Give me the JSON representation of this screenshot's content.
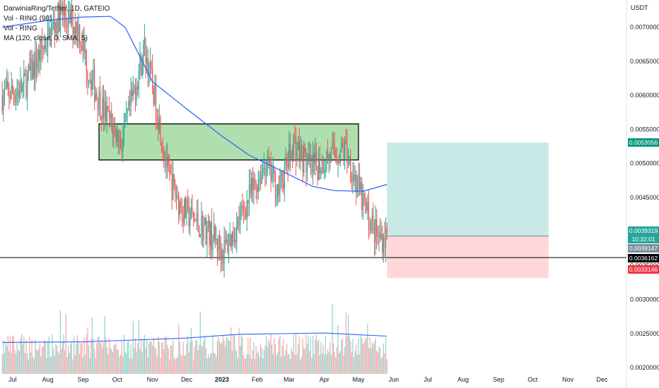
{
  "header": {
    "title": "DarwiniaRing/Tether, 1D, GATEIO",
    "indicators": [
      "Vol - RING (90)",
      "Vol - RING",
      "MA (120, close, 0, SMA, 5)"
    ]
  },
  "axis": {
    "currency": "USDT",
    "price_ticks": [
      "0.0070000",
      "0.0065000",
      "0.0060000",
      "0.0055000",
      "0.0050000",
      "0.0045000",
      "0.0040000",
      "0.0035000",
      "0.0030000",
      "0.0025000",
      "0.0020000"
    ],
    "time_ticks": [
      "Jul",
      "Aug",
      "Sep",
      "Oct",
      "Nov",
      "Dec",
      "2023",
      "Feb",
      "Mar",
      "Apr",
      "May",
      "Jun",
      "Jul",
      "Aug",
      "Sep",
      "Oct",
      "Nov",
      "Dec"
    ]
  },
  "price_labels": {
    "target": "0.0053056",
    "last": "0.0039319",
    "countdown": "10:32:01",
    "level_a": "0.0039147",
    "level_b": "0.0036162",
    "stop": "0.0033146"
  },
  "colors": {
    "up": "#26a69a",
    "down": "#ef5350",
    "ma": "#2962ff",
    "zone": "#6dc46d",
    "target_fill": "#b2dfdb",
    "stop_fill": "#ffcdd2",
    "target_tag": "#089981",
    "last_tag": "#26a69a",
    "level_tag": "#78909c",
    "black_tag": "#000000",
    "stop_tag": "#f23645"
  },
  "chart_data": {
    "type": "candlestick",
    "interval": "1D",
    "ylim": [
      0.0017,
      0.0074
    ],
    "x_range": [
      "2022-06-20",
      "2023-12-20"
    ],
    "log_scale": false,
    "grid": false,
    "key_points": [
      {
        "date": "2022-06-22",
        "close": 0.006
      },
      {
        "date": "2022-07-10",
        "close": 0.0061
      },
      {
        "date": "2022-08-12",
        "close": 0.0072
      },
      {
        "date": "2022-08-28",
        "close": 0.007
      },
      {
        "date": "2022-09-05",
        "close": 0.0064
      },
      {
        "date": "2022-09-18",
        "close": 0.0058
      },
      {
        "date": "2022-10-05",
        "close": 0.0053
      },
      {
        "date": "2022-10-25",
        "close": 0.0067
      },
      {
        "date": "2022-11-05",
        "close": 0.0058
      },
      {
        "date": "2022-11-15",
        "close": 0.0048
      },
      {
        "date": "2022-11-28",
        "close": 0.0043
      },
      {
        "date": "2022-12-20",
        "close": 0.004
      },
      {
        "date": "2023-01-02",
        "close": 0.0037
      },
      {
        "date": "2023-01-12",
        "close": 0.004
      },
      {
        "date": "2023-01-25",
        "close": 0.0045
      },
      {
        "date": "2023-02-08",
        "close": 0.005
      },
      {
        "date": "2023-02-20",
        "close": 0.0046
      },
      {
        "date": "2023-03-05",
        "close": 0.0053
      },
      {
        "date": "2023-03-20",
        "close": 0.0049
      },
      {
        "date": "2023-04-05",
        "close": 0.0051
      },
      {
        "date": "2023-04-20",
        "close": 0.0052
      },
      {
        "date": "2023-05-05",
        "close": 0.0044
      },
      {
        "date": "2023-05-18",
        "close": 0.0039
      },
      {
        "date": "2023-05-26",
        "close": 0.00393
      }
    ],
    "ma120": [
      {
        "date": "2022-06-22",
        "value": 0.007
      },
      {
        "date": "2022-08-01",
        "value": 0.0071
      },
      {
        "date": "2022-09-01",
        "value": 0.00715
      },
      {
        "date": "2022-09-25",
        "value": 0.00716
      },
      {
        "date": "2022-10-08",
        "value": 0.007
      },
      {
        "date": "2022-10-20",
        "value": 0.0066
      },
      {
        "date": "2022-11-01",
        "value": 0.0062
      },
      {
        "date": "2022-12-01",
        "value": 0.0058
      },
      {
        "date": "2023-01-01",
        "value": 0.0054
      },
      {
        "date": "2023-01-25",
        "value": 0.00512
      },
      {
        "date": "2023-02-15",
        "value": 0.00495
      },
      {
        "date": "2023-03-10",
        "value": 0.00476
      },
      {
        "date": "2023-03-22",
        "value": 0.00466
      },
      {
        "date": "2023-04-10",
        "value": 0.0046
      },
      {
        "date": "2023-05-05",
        "value": 0.00459
      },
      {
        "date": "2023-05-26",
        "value": 0.00469
      }
    ],
    "volume_ma": [
      {
        "date": "2022-06-22",
        "value": 0.5
      },
      {
        "date": "2022-09-01",
        "value": 0.51
      },
      {
        "date": "2022-12-01",
        "value": 0.57
      },
      {
        "date": "2023-01-15",
        "value": 0.63
      },
      {
        "date": "2023-04-01",
        "value": 0.65
      },
      {
        "date": "2023-05-26",
        "value": 0.6
      }
    ],
    "zone": {
      "from": "2022-09-15",
      "to": "2023-05-01",
      "top": 0.00558,
      "bottom": 0.00505
    },
    "position": {
      "from": "2023-05-26",
      "to": "2023-10-15",
      "entry": 0.0039319,
      "target": 0.0053056,
      "stop": 0.0033146
    },
    "hline": {
      "value": 0.0036162
    }
  }
}
